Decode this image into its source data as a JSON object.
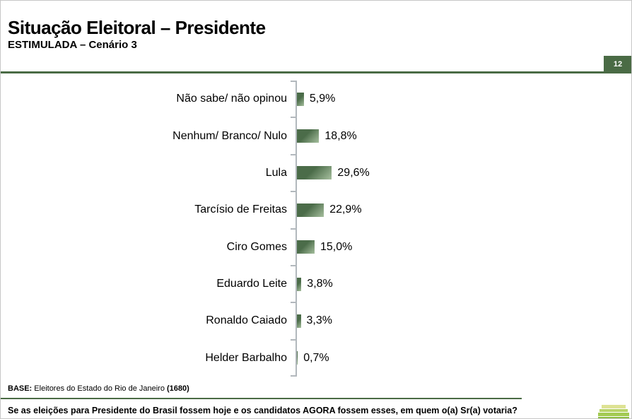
{
  "header": {
    "title": "Situação Eleitoral – Presidente",
    "subtitle": "ESTIMULADA – Cenário 3",
    "page_number": "12"
  },
  "chart_data": {
    "type": "bar",
    "orientation": "horizontal",
    "title": "Situação Eleitoral – Presidente (ESTIMULADA – Cenário 3)",
    "categories": [
      "Não sabe/ não opinou",
      "Nenhum/ Branco/ Nulo",
      "Lula",
      "Tarcísio de Freitas",
      "Ciro Gomes",
      "Eduardo Leite",
      "Ronaldo Caiado",
      "Helder Barbalho"
    ],
    "values": [
      5.9,
      18.8,
      29.6,
      22.9,
      15.0,
      3.8,
      3.3,
      0.7
    ],
    "value_labels": [
      "5,9%",
      "18,8%",
      "29,6%",
      "22,9%",
      "15,0%",
      "3,8%",
      "3,3%",
      "0,7%"
    ],
    "xlim": [
      0,
      100
    ],
    "grid": false,
    "legend": false,
    "data_label_position": "outside-end"
  },
  "footer": {
    "base_label": "BASE:",
    "base_text": " Eleitores do Estado do Rio de Janeiro ",
    "base_count": "(1680)",
    "question": "Se as eleições para Presidente do Brasil fossem hoje e os candidatos AGORA fossem esses, em quem o(a) Sr(a) votaria?"
  },
  "colors": {
    "accent_green": "#4a6b45",
    "badge_green": "#4d6b4a",
    "bar_gradient_dark": "#4b6c49",
    "bar_gradient_light": "#a6bf9e",
    "axis_gray": "#b2b8bd",
    "logo_greens": [
      "#dde293",
      "#b9d46a",
      "#a3ca52",
      "#8cbd3e"
    ]
  }
}
